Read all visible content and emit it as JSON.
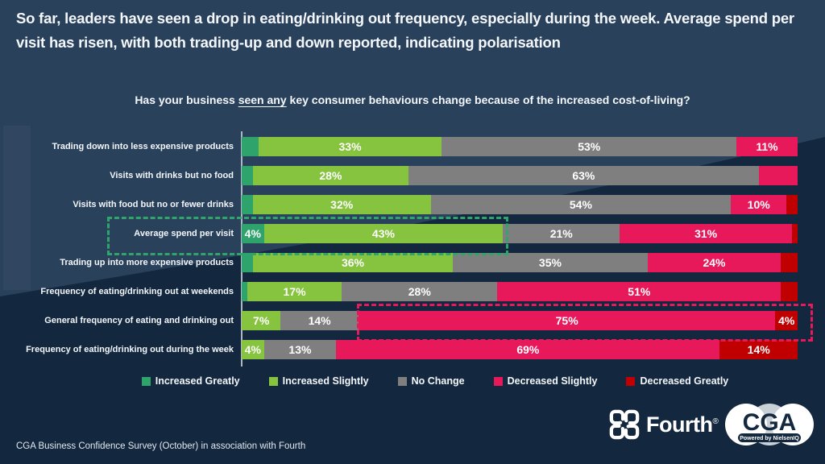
{
  "title": "So far, leaders have seen a drop in eating/drinking out frequency, especially during the week. Average spend per visit has risen, with both trading-up and down reported, indicating polarisation",
  "question": {
    "pre": "Has your business ",
    "underlined": "seen any",
    "post": " key consumer behaviours change because of the increased cost-of-living?"
  },
  "colors": {
    "background_top": "#2A415C",
    "background_bottom": "#13273F",
    "series": [
      "#2EA36B",
      "#86C440",
      "#7F7F7F",
      "#E8195A",
      "#C00000"
    ],
    "axis_line": "#AEB6BF",
    "green_annotation_box": "#2FA56C",
    "red_annotation_box": "#E8195A"
  },
  "chart_data": {
    "type": "bar",
    "stacked": true,
    "orientation": "horizontal",
    "title": "Has your business seen any key consumer behaviours change because of the increased cost-of-living?",
    "unit": "%",
    "xlim": [
      0,
      100
    ],
    "legend_position": "bottom",
    "grid": false,
    "series_names": [
      "Increased Greatly",
      "Increased Slightly",
      "No Change",
      "Decreased Slightly",
      "Decreased Greatly"
    ],
    "categories": [
      "Trading down into less expensive products",
      "Visits with drinks but no food",
      "Visits with food but no or fewer drinks",
      "Average spend per visit",
      "Trading up into more expensive products",
      "Frequency of eating/drinking out at weekends",
      "General frequency of eating and drinking out",
      "Frequency of eating/drinking out during the week"
    ],
    "rows": [
      {
        "category": "Trading down into less expensive products",
        "values": [
          3,
          33,
          53,
          11,
          0
        ],
        "labels": [
          "",
          "33%",
          "53%",
          "11%",
          ""
        ]
      },
      {
        "category": "Visits with drinks but no food",
        "values": [
          2,
          28,
          63,
          7,
          0
        ],
        "labels": [
          "",
          "28%",
          "63%",
          "",
          ""
        ]
      },
      {
        "category": "Visits with food but no or fewer drinks",
        "values": [
          2,
          32,
          54,
          10,
          2
        ],
        "labels": [
          "",
          "32%",
          "54%",
          "10%",
          ""
        ]
      },
      {
        "category": "Average spend per visit",
        "values": [
          4,
          43,
          21,
          31,
          1
        ],
        "labels": [
          "4%",
          "43%",
          "21%",
          "31%",
          ""
        ]
      },
      {
        "category": "Trading up into more expensive products",
        "values": [
          2,
          36,
          35,
          24,
          3
        ],
        "labels": [
          "",
          "36%",
          "35%",
          "24%",
          ""
        ]
      },
      {
        "category": "Frequency of eating/drinking out at weekends",
        "values": [
          1,
          17,
          28,
          51,
          3
        ],
        "labels": [
          "",
          "17%",
          "28%",
          "51%",
          ""
        ]
      },
      {
        "category": "General frequency of eating and drinking out",
        "values": [
          0,
          7,
          14,
          75,
          4
        ],
        "labels": [
          "",
          "7%",
          "14%",
          "75%",
          "4%"
        ]
      },
      {
        "category": "Frequency of eating/drinking out during the week",
        "values": [
          0,
          4,
          13,
          69,
          14
        ],
        "labels": [
          "",
          "4%",
          "13%",
          "69%",
          "14%"
        ]
      }
    ],
    "annotations": [
      {
        "shape": "dashed-box",
        "color": "#2FA56C",
        "around": "Average spend per visit (increase segments)"
      },
      {
        "shape": "dashed-box",
        "color": "#E8195A",
        "around": "General frequency of eating and drinking out (decrease segments)"
      }
    ]
  },
  "legend": [
    {
      "label": "Increased Greatly",
      "color": "#2EA36B"
    },
    {
      "label": "Increased Slightly",
      "color": "#86C440"
    },
    {
      "label": "No Change",
      "color": "#7F7F7F"
    },
    {
      "label": "Decreased Slightly",
      "color": "#E8195A"
    },
    {
      "label": "Decreased Greatly",
      "color": "#C00000"
    }
  ],
  "footer": {
    "source": "CGA Business Confidence Survey (October) in association with Fourth"
  },
  "logos": {
    "fourth_label": "Fourth",
    "fourth_registered": "®",
    "cga_label": "CGA",
    "cga_sub_label": "Powered by NielsenIQ"
  }
}
